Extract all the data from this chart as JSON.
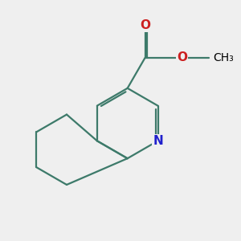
{
  "bg_color": "#efefef",
  "bond_color": "#3d7a6a",
  "N_color": "#2020cc",
  "O_color": "#cc2020",
  "line_width": 1.6,
  "font_size_atom": 11,
  "r_ring": 1.25,
  "pcx": 5.5,
  "pcy": 4.9,
  "xlim": [
    1.0,
    9.5
  ],
  "ylim": [
    1.5,
    8.5
  ]
}
